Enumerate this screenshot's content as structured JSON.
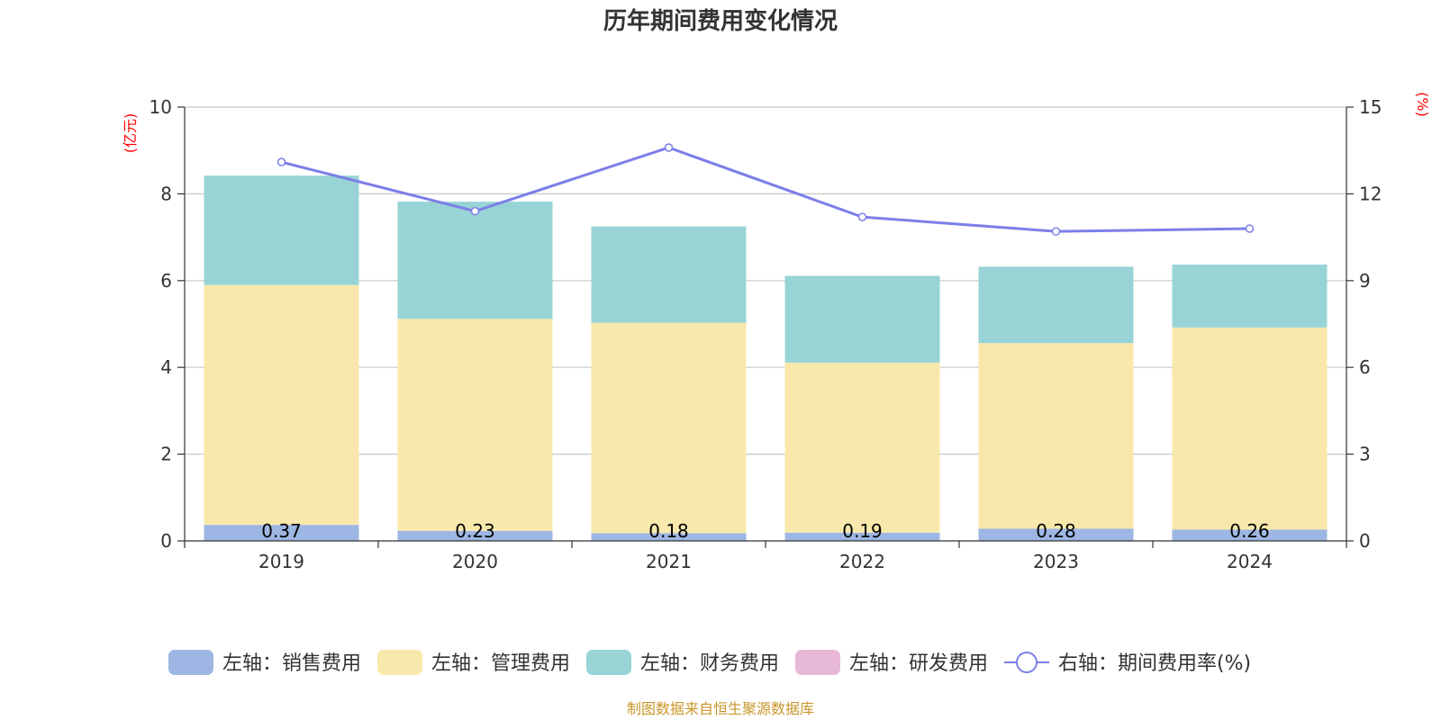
{
  "chart_data": {
    "type": "bar",
    "stacked": true,
    "title": "历年期间费用变化情况",
    "categories": [
      "2019",
      "2020",
      "2021",
      "2022",
      "2023",
      "2024"
    ],
    "left_axis": {
      "unit": "(亿元)",
      "ylim": [
        0,
        10
      ],
      "ticks": [
        0,
        2,
        4,
        6,
        8,
        10
      ]
    },
    "right_axis": {
      "unit": "(%)",
      "ylim": [
        0,
        15
      ],
      "ticks": [
        0,
        3,
        6,
        9,
        12,
        15
      ]
    },
    "grid": true,
    "legend_position": "bottom",
    "series": [
      {
        "name": "左轴：销售费用",
        "axis": "left",
        "kind": "bar",
        "color": "#9db6e3",
        "values": [
          0.37,
          0.23,
          0.18,
          0.19,
          0.28,
          0.26
        ],
        "labels": [
          "0.37",
          "0.23",
          "0.18",
          "0.19",
          "0.28",
          "0.26"
        ]
      },
      {
        "name": "左轴：管理费用",
        "axis": "left",
        "kind": "bar",
        "color": "#f8e8ab",
        "values": [
          5.53,
          4.89,
          4.85,
          3.92,
          4.28,
          4.66
        ]
      },
      {
        "name": "左轴：财务费用",
        "axis": "left",
        "kind": "bar",
        "color": "#98d4d5",
        "values": [
          2.52,
          2.7,
          2.22,
          2.0,
          1.76,
          1.45
        ]
      },
      {
        "name": "左轴：研发费用",
        "axis": "left",
        "kind": "bar",
        "color": "#e8b8d8",
        "values": [
          0,
          0,
          0,
          0,
          0,
          0
        ]
      },
      {
        "name": "右轴：期间费用率(%)",
        "axis": "right",
        "kind": "line",
        "color": "#7b7fe8",
        "values": [
          13.1,
          11.4,
          13.6,
          11.2,
          10.7,
          10.8
        ]
      }
    ],
    "source": "制图数据来自恒生聚源数据库"
  }
}
